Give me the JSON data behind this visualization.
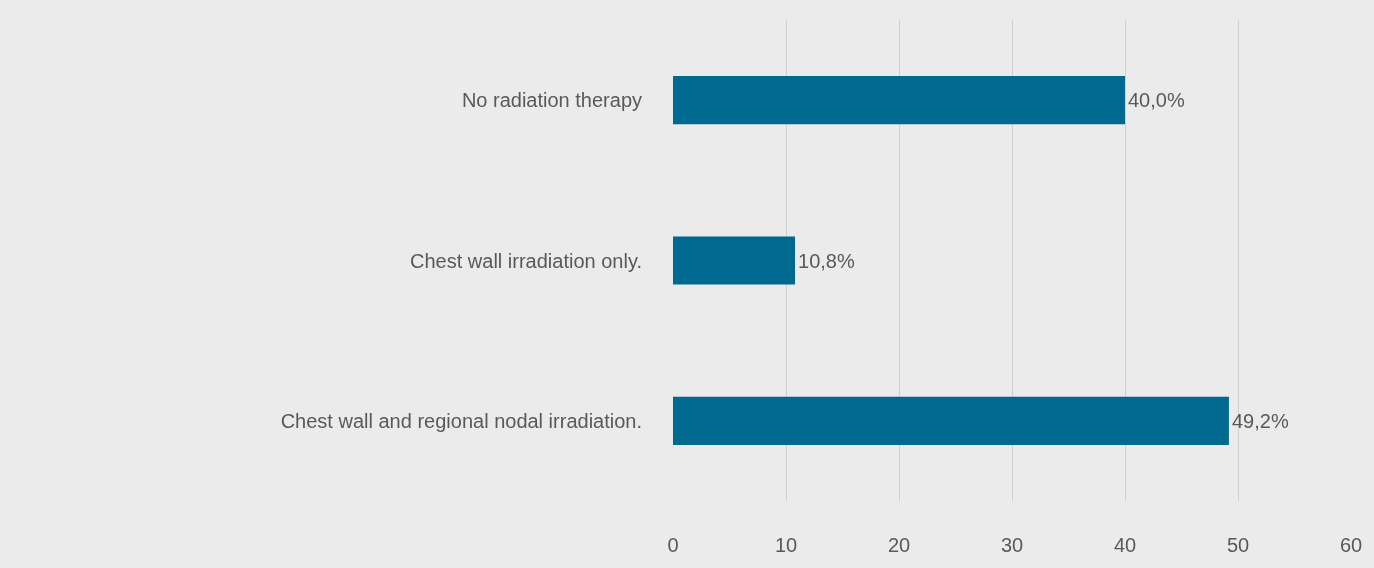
{
  "chart_data": {
    "type": "bar",
    "orientation": "horizontal",
    "categories": [
      "No radiation therapy",
      "Chest wall irradiation only.",
      "Chest wall and regional nodal irradiation."
    ],
    "values": [
      40.0,
      10.8,
      49.2
    ],
    "value_labels": [
      "40,0%",
      "10,8%",
      "49,2%"
    ],
    "color": "#00698f",
    "xlim": [
      0,
      60
    ],
    "xticks": [
      0,
      10,
      20,
      30,
      40,
      50,
      60
    ],
    "grid": "x",
    "legend": false
  }
}
